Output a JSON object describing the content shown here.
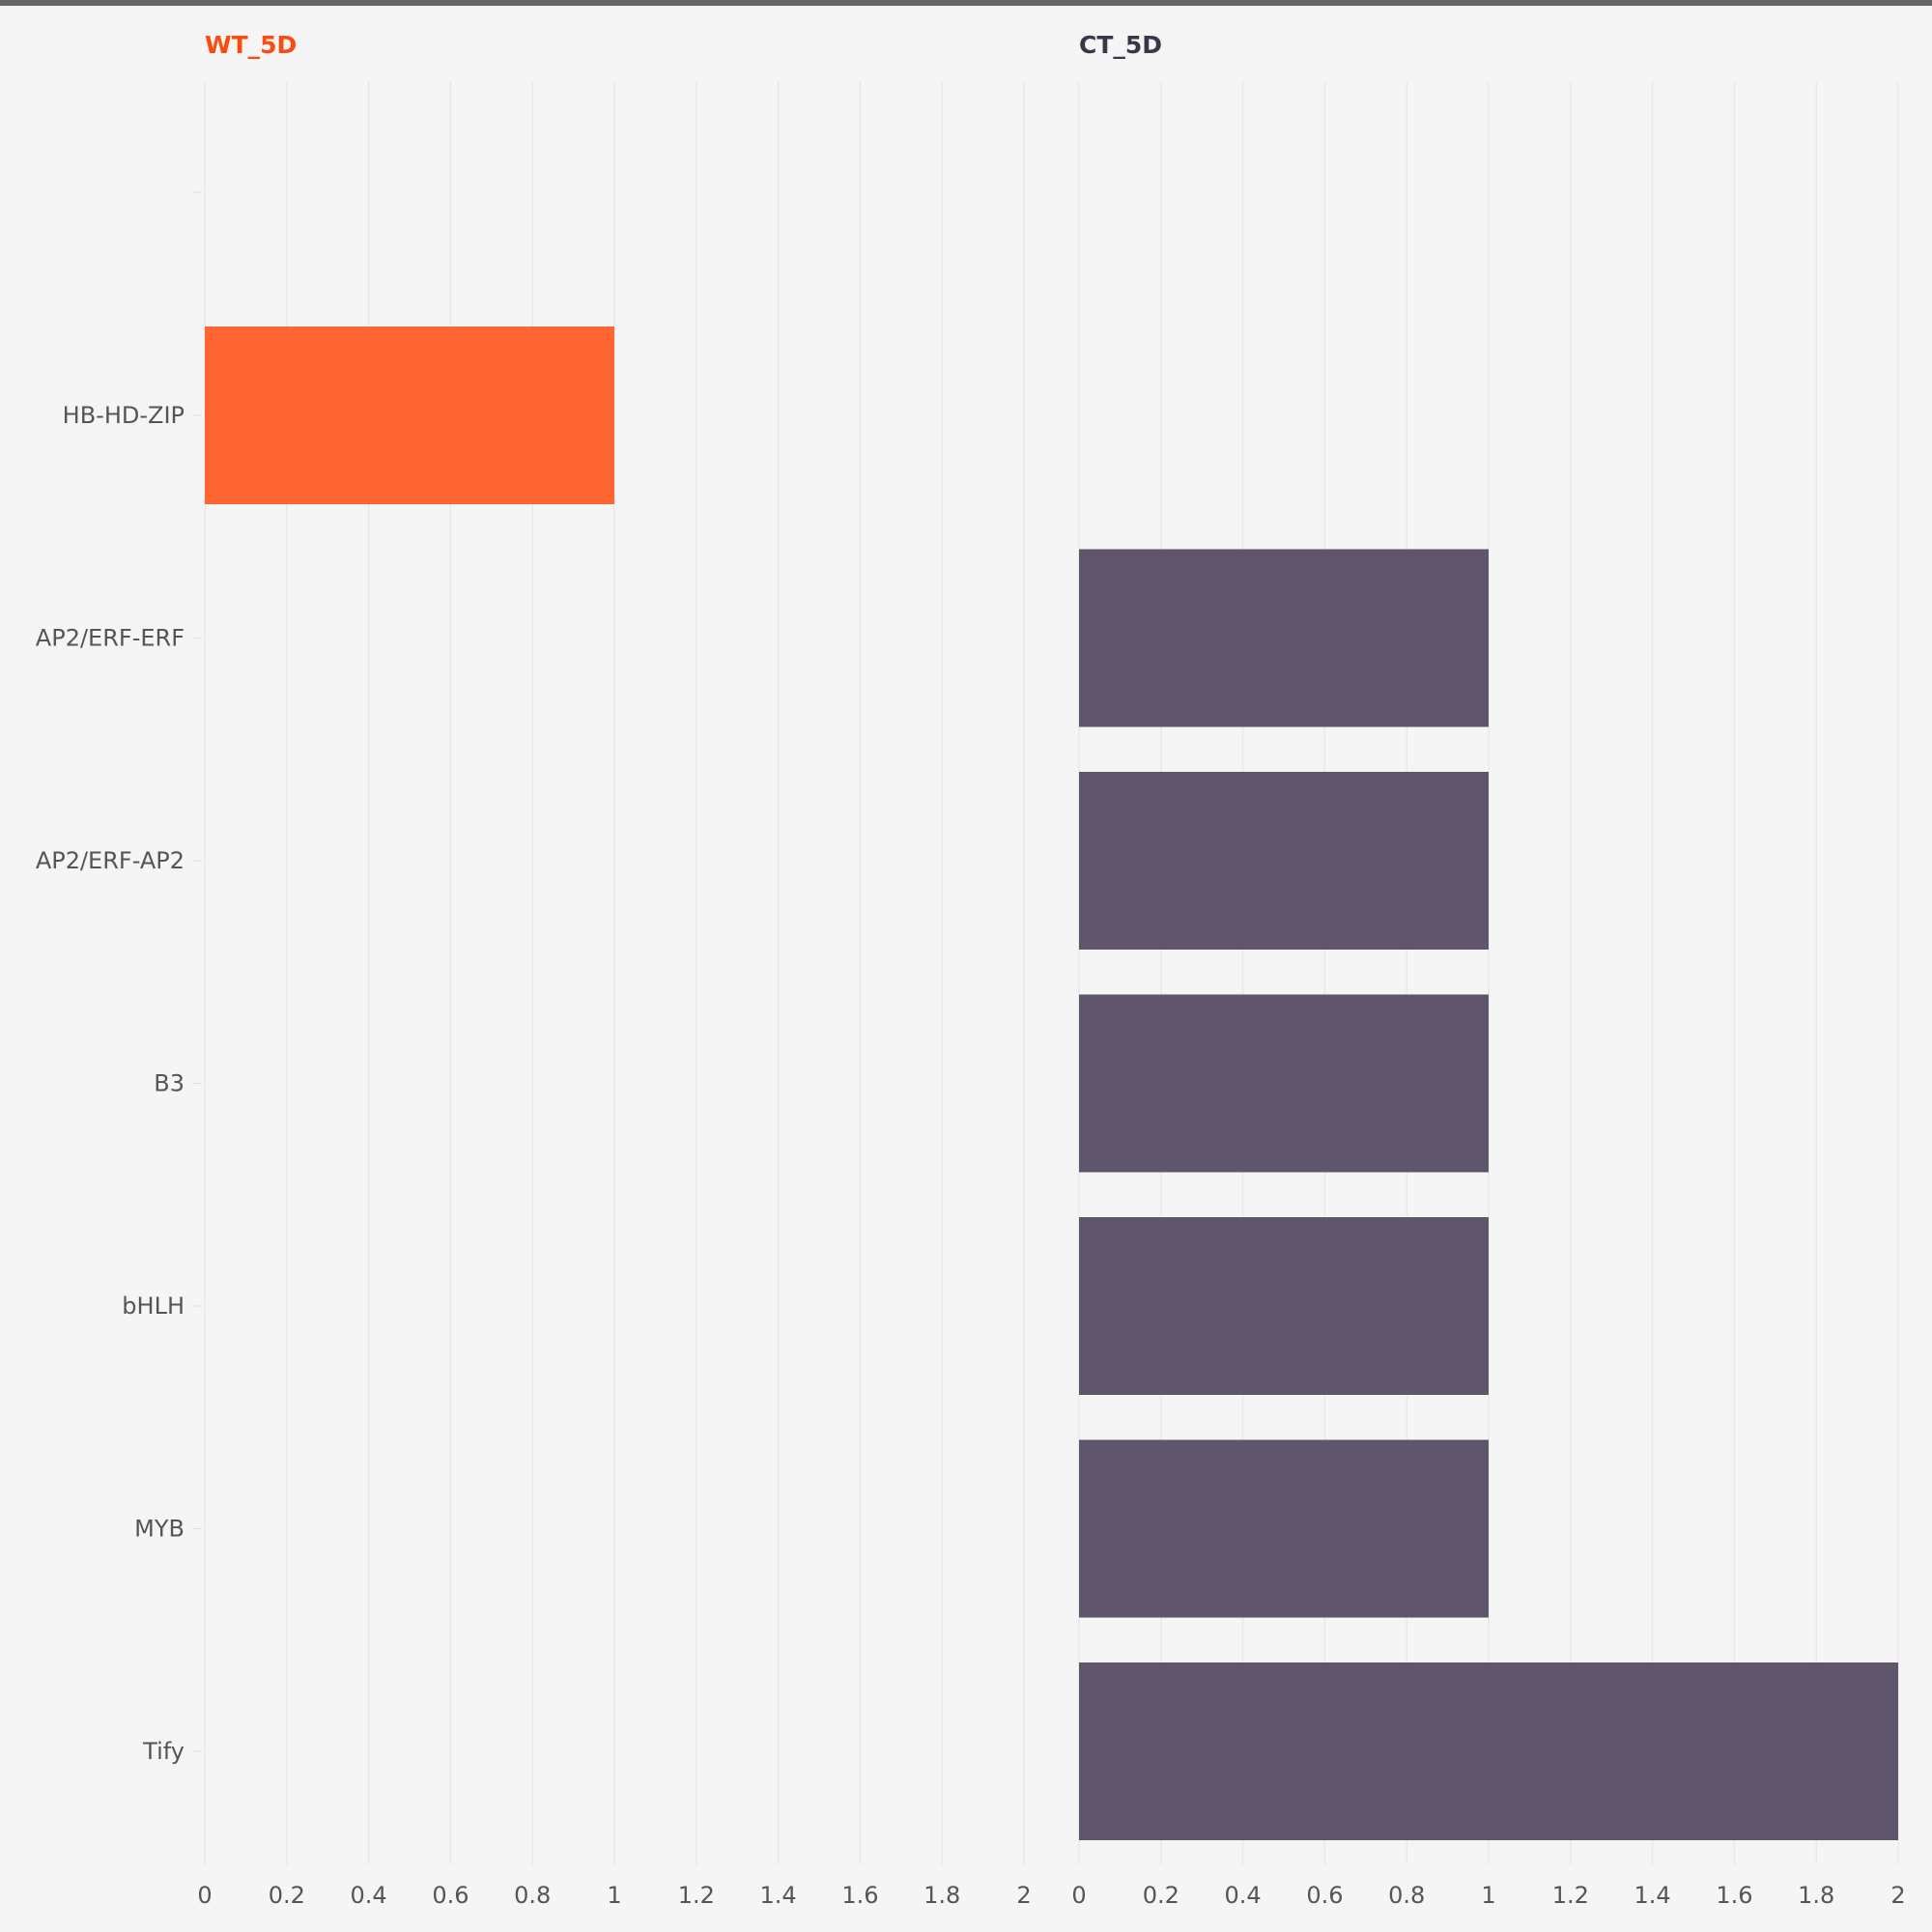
{
  "chart_data": {
    "type": "bar",
    "orientation": "horizontal",
    "categories": [
      "HB-HD-ZIP",
      "AP2/ERF-ERF",
      "AP2/ERF-AP2",
      "B3",
      "bHLH",
      "MYB",
      "Tify"
    ],
    "panels": [
      {
        "title": "WT_5D",
        "color": "#ff6433",
        "title_color": "#ff4a0f",
        "values": [
          1,
          null,
          null,
          null,
          null,
          null,
          null
        ],
        "xlim": [
          0,
          2
        ],
        "ticks": [
          "0",
          "0.2",
          "0.4",
          "0.6",
          "0.8",
          "1",
          "1.2",
          "1.4",
          "1.6",
          "1.8",
          "2"
        ]
      },
      {
        "title": "CT_5D",
        "color": "#5f566b",
        "title_color": "#3c3548",
        "values": [
          null,
          1,
          1,
          1,
          1,
          1,
          2
        ],
        "xlim": [
          0,
          2
        ],
        "ticks": [
          "0",
          "0.2",
          "0.4",
          "0.6",
          "0.8",
          "1",
          "1.2",
          "1.4",
          "1.6",
          "1.8",
          "2"
        ]
      }
    ],
    "grid": true,
    "legend": "none"
  }
}
